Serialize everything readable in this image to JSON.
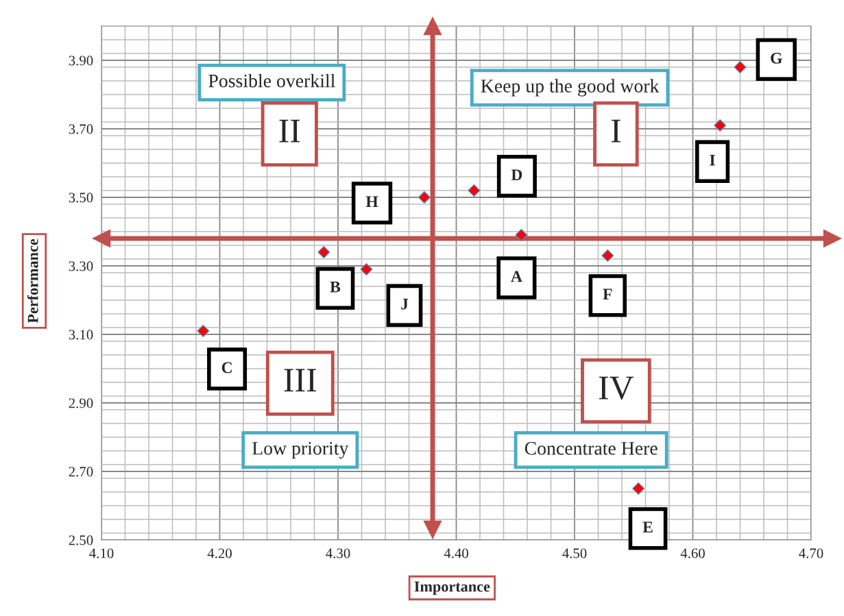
{
  "chart_data": {
    "type": "scatter",
    "xlabel": "Importance",
    "ylabel": "Performance",
    "x": [
      4.455,
      4.288,
      4.186,
      4.415,
      4.554,
      4.528,
      4.64,
      4.373,
      4.623,
      4.324
    ],
    "series": [
      {
        "color": "#ff0000",
        "values": [
          3.39,
          3.34,
          3.11,
          3.52,
          2.65,
          3.33,
          3.88,
          3.5,
          3.71,
          3.29
        ]
      }
    ],
    "marker": "diamond",
    "xlim": [
      4.1,
      4.7
    ],
    "xticks": [
      {
        "value": 4.1,
        "label": "4.10"
      },
      {
        "value": 4.2,
        "label": "4.20"
      },
      {
        "value": 4.3,
        "label": "4.30"
      },
      {
        "value": 4.4,
        "label": "4.40"
      },
      {
        "value": 4.5,
        "label": "4.50"
      },
      {
        "value": 4.6,
        "label": "4.60"
      },
      {
        "value": 4.7,
        "label": "4.70"
      }
    ],
    "ylim": [
      2.5,
      4.0
    ],
    "yticks": [
      {
        "value": 2.5,
        "label": "2.50"
      },
      {
        "value": 2.7,
        "label": "2.70"
      },
      {
        "value": 2.9,
        "label": "2.90"
      },
      {
        "value": 3.1,
        "label": "3.10"
      },
      {
        "value": 3.3,
        "label": "3.30"
      },
      {
        "value": 3.5,
        "label": "3.50"
      },
      {
        "value": 3.7,
        "label": "3.70"
      },
      {
        "value": 3.9,
        "label": "3.90"
      }
    ],
    "grid": true,
    "ref_lines": [
      {
        "axis": "x",
        "value": 4.38,
        "color": "#c0504d"
      },
      {
        "axis": "y",
        "value": 3.38,
        "color": "#c0504d"
      }
    ],
    "annotations": [
      {
        "text": "A",
        "x": 4.455,
        "y": 3.39
      },
      {
        "text": "B",
        "x": 4.288,
        "y": 3.34
      },
      {
        "text": "C",
        "x": 4.186,
        "y": 3.11
      },
      {
        "text": "D",
        "x": 4.415,
        "y": 3.52
      },
      {
        "text": "E",
        "x": 4.554,
        "y": 2.65
      },
      {
        "text": "F",
        "x": 4.528,
        "y": 3.33
      },
      {
        "text": "G",
        "x": 4.64,
        "y": 3.88
      },
      {
        "text": "H",
        "x": 4.373,
        "y": 3.5
      },
      {
        "text": "I",
        "x": 4.623,
        "y": 3.71
      },
      {
        "text": "J",
        "x": 4.324,
        "y": 3.29
      },
      "Possible overkill",
      "Keep up the good work",
      "Low priority",
      "Concentrate Here",
      "II",
      "I",
      "III",
      "IV"
    ]
  }
}
